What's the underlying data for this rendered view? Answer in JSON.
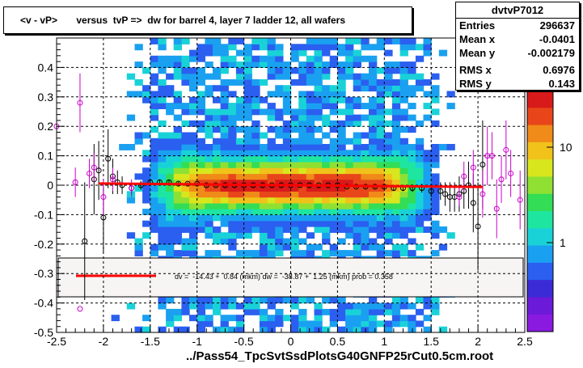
{
  "title": "<v - vP>       versus  tvP =>  dw for barrel 4, layer 7 ladder 12, all wafers",
  "stats": {
    "name": "dvtvP7012",
    "rows": [
      {
        "label": "Entries",
        "value": "296637"
      },
      {
        "label": "Mean x",
        "value": "-0.0401"
      },
      {
        "label": "Mean y",
        "value": "-0.002179"
      },
      {
        "label": "RMS x",
        "value": "0.6976"
      },
      {
        "label": "RMS y",
        "value": "0.143"
      }
    ]
  },
  "xtitle": "../Pass54_TpcSvtSsdPlotsG40GNFP25rCut0.5cm.root",
  "fit_legend": "dv =  -14.43 +  0.84 (mkm) dw =  -38.87 +  1.25 (mkm) prob = 0.358",
  "colors": {
    "fit_line": "#ff0000",
    "profile": "#000000",
    "profile2": "#cc00cc",
    "axis": "#000000"
  },
  "chart_data": {
    "type": "heatmap",
    "x_ticks": [
      "-2.5",
      "-2",
      "-1.5",
      "-1",
      "-0.5",
      "0",
      "0.5",
      "1",
      "1.5",
      "2",
      "2.5"
    ],
    "y_ticks": [
      "-0.5",
      "-0.4",
      "-0.3",
      "-0.2",
      "-0.1",
      "0",
      "0.1",
      "0.2",
      "0.3",
      "0.4"
    ],
    "xlim": [
      -2.5,
      2.5
    ],
    "ylim": [
      -0.5,
      0.5
    ],
    "z_scale": "log",
    "z_ticks": [
      "1",
      "10"
    ],
    "grid": true,
    "fit_line": {
      "x": [
        -2.05,
        2.05
      ],
      "y": [
        0.006,
        -0.006
      ]
    },
    "profile_black": {
      "x": [
        -2.2,
        -2.1,
        -2.05,
        -2.0,
        -1.95,
        -1.9,
        -1.85,
        -1.8,
        -1.7,
        -1.6,
        -1.5,
        -1.4,
        -1.3,
        -1.2,
        -1.1,
        -1.0,
        -0.9,
        -0.8,
        -0.7,
        -0.6,
        -0.5,
        -0.4,
        -0.3,
        -0.2,
        -0.1,
        0.0,
        0.1,
        0.2,
        0.3,
        0.4,
        0.5,
        0.6,
        0.7,
        0.8,
        0.9,
        1.0,
        1.1,
        1.2,
        1.3,
        1.4,
        1.5,
        1.6,
        1.65,
        1.7,
        1.75,
        1.8,
        1.85,
        1.9,
        1.95,
        2.0,
        2.05
      ],
      "y": [
        -0.19,
        0.02,
        0.05,
        -0.11,
        0.09,
        0.03,
        0.01,
        0.0,
        -0.01,
        0.0,
        0.01,
        0.01,
        0.01,
        0.005,
        0.005,
        0.005,
        0.0,
        0.0,
        0.0,
        0.0,
        0.0,
        0.0,
        0.0,
        0.0,
        0.0,
        0.0,
        0.0,
        0.0,
        0.0,
        0.0,
        0.0,
        -0.005,
        -0.005,
        -0.005,
        -0.005,
        -0.005,
        -0.01,
        -0.01,
        -0.01,
        -0.01,
        -0.02,
        -0.02,
        -0.03,
        -0.04,
        -0.04,
        -0.03,
        -0.02,
        0.0,
        -0.06,
        -0.14,
        0.07
      ],
      "err": [
        0.2,
        0.12,
        0.1,
        0.12,
        0.1,
        0.06,
        0.04,
        0.03,
        0.02,
        0.015,
        0.01,
        0.01,
        0.008,
        0.006,
        0.005,
        0.005,
        0.004,
        0.004,
        0.004,
        0.004,
        0.004,
        0.004,
        0.004,
        0.004,
        0.004,
        0.004,
        0.004,
        0.004,
        0.004,
        0.004,
        0.004,
        0.004,
        0.004,
        0.005,
        0.005,
        0.006,
        0.008,
        0.01,
        0.012,
        0.015,
        0.02,
        0.03,
        0.04,
        0.05,
        0.05,
        0.06,
        0.06,
        0.08,
        0.1,
        0.15,
        0.15
      ]
    },
    "profile_magenta": {
      "x": [
        -2.5,
        -2.3,
        -2.25,
        -2.15,
        -2.1,
        -2.0,
        -1.9,
        -1.7,
        1.8,
        1.85,
        1.95,
        2.05,
        2.1,
        2.15,
        2.2,
        2.25,
        2.3,
        2.35,
        2.45
      ],
      "y": [
        0.2,
        0.01,
        0.28,
        0.04,
        0.06,
        -0.04,
        0.02,
        -0.01,
        -0.04,
        0.03,
        0.06,
        -0.03,
        0.1,
        0.1,
        -0.08,
        0.02,
        0.12,
        0.04,
        -0.05
      ],
      "err": [
        0.06,
        0.05,
        0.1,
        0.05,
        0.05,
        0.06,
        0.04,
        0.03,
        0.03,
        0.05,
        0.06,
        0.08,
        0.1,
        0.08,
        0.1,
        0.08,
        0.1,
        0.08,
        0.1
      ]
    },
    "outlier_magenta": {
      "x": [
        -2.25
      ],
      "y": [
        -0.42
      ]
    }
  }
}
